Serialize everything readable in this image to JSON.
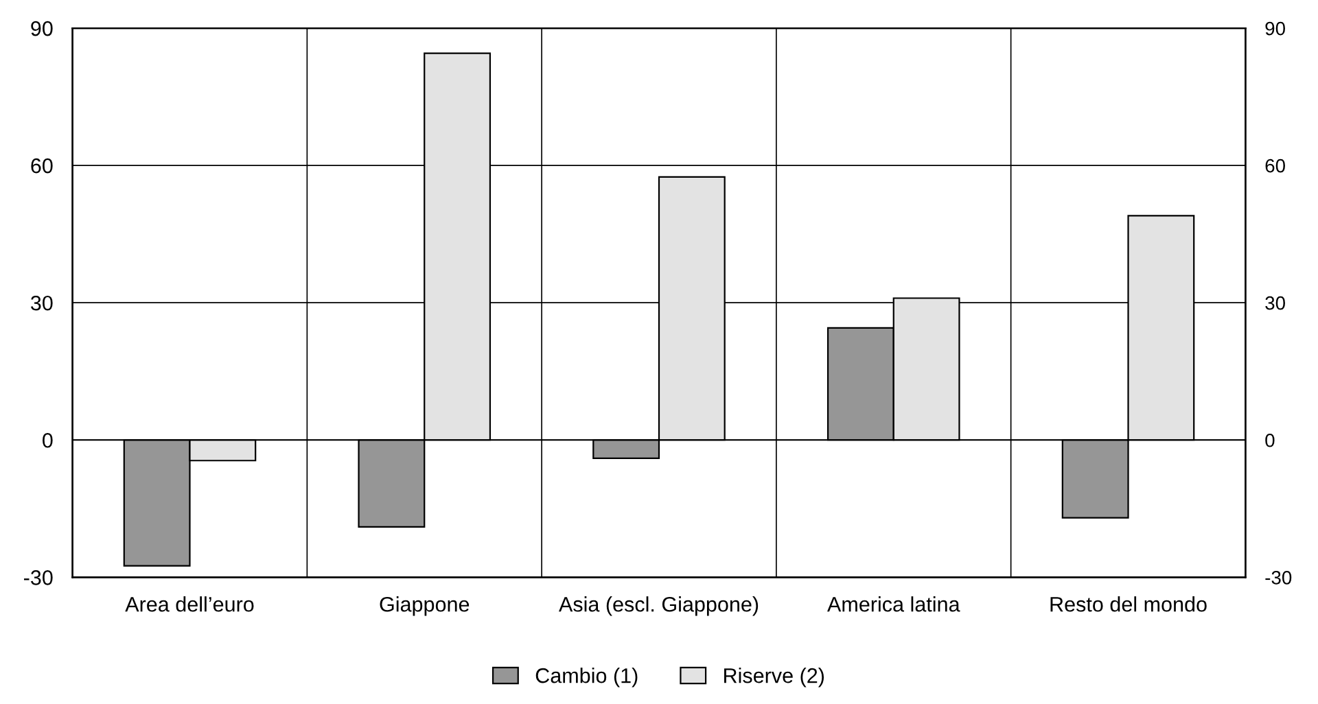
{
  "chart_data": {
    "type": "bar",
    "categories": [
      "Area dell’euro",
      "Giappone",
      "Asia (escl. Giappone)",
      "America latina",
      "Resto del mondo"
    ],
    "series": [
      {
        "name": "Cambio (1)",
        "color": "#969696",
        "values": [
          -27.5,
          -19,
          -4,
          24.5,
          -17
        ]
      },
      {
        "name": "Riserve (2)",
        "color": "#e3e3e3",
        "values": [
          -4.5,
          84.5,
          57.5,
          31,
          49
        ]
      }
    ],
    "ylim": [
      -30,
      90
    ],
    "yticks": [
      -30,
      0,
      30,
      60,
      90
    ],
    "y2lim": [
      -30,
      90
    ],
    "y2ticks": [
      -30,
      0,
      30,
      60,
      90
    ],
    "grid": true,
    "legend": "bottom"
  }
}
